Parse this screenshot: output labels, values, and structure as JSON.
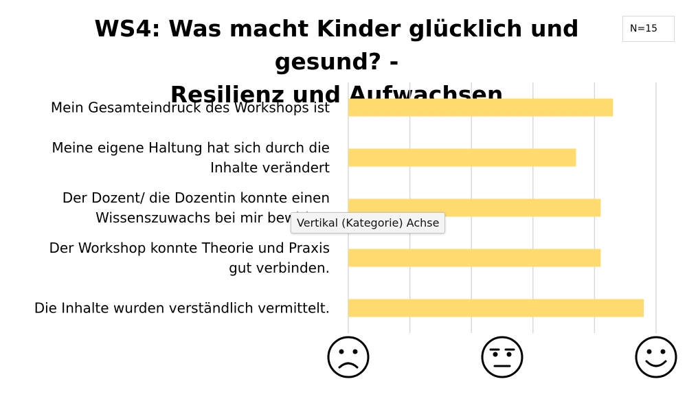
{
  "title": {
    "line1": "WS4: Was macht Kinder glücklich und gesund? -",
    "line2": "Resilienz und Aufwachsen"
  },
  "n_label": "N=15",
  "tooltip": "Vertikal (Kategorie) Achse",
  "colors": {
    "bar": "#FFDA6E",
    "grid": "#d9d9d9",
    "face": "#000000"
  },
  "chart_data": {
    "type": "bar",
    "orientation": "horizontal",
    "categories": [
      [
        "Mein Gesamteindruck des Workshops ist"
      ],
      [
        "Meine eigene Haltung hat sich durch die",
        "Inhalte verändert"
      ],
      [
        "Der Dozent/ die Dozentin konnte einen",
        "Wissenszuwachs bei mir bewirken"
      ],
      [
        "Der Workshop konnte Theorie und Praxis",
        "gut verbinden."
      ],
      [
        "Die Inhalte wurden verständlich vermittelt."
      ]
    ],
    "values": [
      4.3,
      3.7,
      4.1,
      4.1,
      4.8
    ],
    "xlim": [
      0,
      5
    ],
    "grid": true,
    "axis_icons": [
      "sad-face-icon",
      "neutral-face-icon",
      "happy-face-icon"
    ],
    "axis_icon_values": [
      0,
      2.5,
      5
    ],
    "legend": "none"
  }
}
